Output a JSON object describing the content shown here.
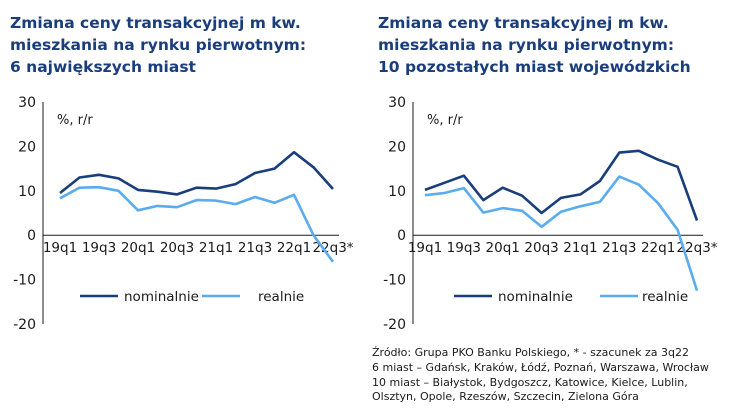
{
  "colors": {
    "nominal": "#1a3d7c",
    "real": "#5aacef",
    "axis": "#1b1b1b",
    "title": "#1a3d7c"
  },
  "charts": [
    {
      "title_lines": [
        "Zmiana ceny transakcyjnej m kw.",
        "mieszkania na rynku pierwotnym:",
        "6 największych miast"
      ],
      "unit_label": "%, r/r",
      "legend": [
        {
          "label": "nominalnie",
          "key": "nominal"
        },
        {
          "label": "realnie",
          "key": "real"
        }
      ]
    },
    {
      "title_lines": [
        "Zmiana ceny transakcyjnej m kw.",
        "mieszkania na rynku pierwotnym:",
        "10 pozostałych miast wojewódzkich"
      ],
      "unit_label": "%, r/r",
      "legend": [
        {
          "label": "nominalnie",
          "key": "nominal"
        },
        {
          "label": "realnie",
          "key": "real"
        }
      ]
    }
  ],
  "chart_data": [
    {
      "type": "line",
      "x": [
        "19q1",
        "19q2",
        "19q3",
        "19q4",
        "20q1",
        "20q2",
        "20q3",
        "20q4",
        "21q1",
        "21q2",
        "21q3",
        "21q4",
        "22q1",
        "22q2",
        "22q3*"
      ],
      "tick_labels": [
        "19q1",
        "19q3",
        "20q1",
        "20q3",
        "21q1",
        "21q3",
        "22q1",
        "22q3*"
      ],
      "yticks": [
        -20,
        -10,
        0,
        10,
        20,
        30
      ],
      "ylim": [
        -20,
        30
      ],
      "ylabel": "%, r/r",
      "series": [
        {
          "name": "nominalnie",
          "values": [
            9.5,
            13.0,
            13.6,
            12.8,
            10.2,
            9.8,
            9.2,
            10.7,
            10.5,
            11.5,
            14.0,
            15.0,
            18.7,
            15.3,
            10.4
          ]
        },
        {
          "name": "realnie",
          "values": [
            8.3,
            10.7,
            10.8,
            10.0,
            5.6,
            6.6,
            6.3,
            7.9,
            7.8,
            7.0,
            8.6,
            7.3,
            9.1,
            0.0,
            -6.0
          ]
        }
      ],
      "legend_position": "bottom"
    },
    {
      "type": "line",
      "x": [
        "19q1",
        "19q2",
        "19q3",
        "19q4",
        "20q1",
        "20q2",
        "20q3",
        "20q4",
        "21q1",
        "21q2",
        "21q3",
        "21q4",
        "22q1",
        "22q2",
        "22q3*"
      ],
      "tick_labels": [
        "19q1",
        "19q3",
        "20q1",
        "20q3",
        "21q1",
        "21q3",
        "22q1",
        "22q3*"
      ],
      "yticks": [
        -20,
        -10,
        0,
        10,
        20,
        30
      ],
      "ylim": [
        -20,
        30
      ],
      "ylabel": "%, r/r",
      "series": [
        {
          "name": "nominalnie",
          "values": [
            10.2,
            11.8,
            13.4,
            7.9,
            10.7,
            8.9,
            5.0,
            8.4,
            9.2,
            12.2,
            18.6,
            19.0,
            17.0,
            15.4,
            3.3
          ]
        },
        {
          "name": "realnie",
          "values": [
            9.0,
            9.5,
            10.6,
            5.1,
            6.1,
            5.5,
            1.9,
            5.3,
            6.5,
            7.5,
            13.2,
            11.4,
            7.2,
            1.2,
            -12.5
          ]
        }
      ],
      "legend_position": "bottom"
    }
  ],
  "source_lines": [
    "Źródło: Grupa PKO Banku Polskiego, *  - szacunek za 3q22",
    "6 miast – Gdańsk, Kraków, Łódź, Poznań, Warszawa, Wrocław",
    "10 miast – Białystok, Bydgoszcz, Katowice, Kielce, Lublin,",
    "Olsztyn, Opole, Rzeszów, Szczecin, Zielona Góra"
  ]
}
